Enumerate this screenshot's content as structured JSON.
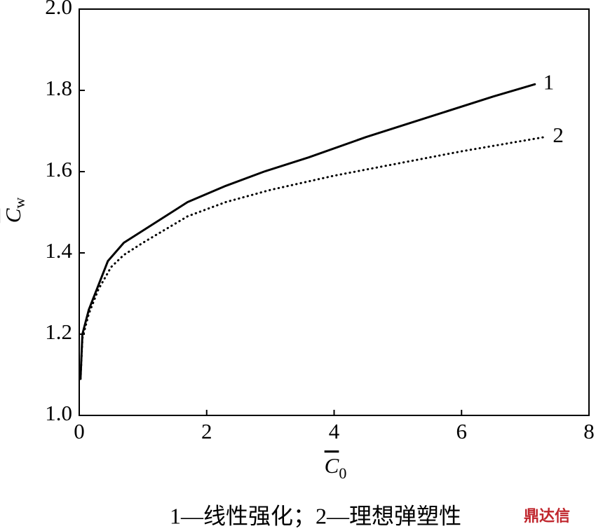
{
  "chart_data": {
    "type": "line",
    "xlabel": {
      "symbol": "C",
      "subscript": "0"
    },
    "ylabel": {
      "symbol": "C",
      "subscript": "w"
    },
    "caption": "1—线性强化；2—理想弹塑性",
    "watermark": "鼎达信",
    "xlim": [
      0,
      8
    ],
    "xticks": [
      0,
      2,
      4,
      6,
      8
    ],
    "ylim": [
      1,
      2
    ],
    "yticks": [
      {
        "value": 1,
        "label": "1.0"
      },
      1.2,
      1.4,
      1.6,
      1.8,
      {
        "value": 2,
        "label": "2.0"
      }
    ],
    "series": [
      {
        "name": "1",
        "color": "#000000",
        "style": "solid",
        "x": [
          0.02,
          0.05,
          0.15,
          0.3,
          0.45,
          0.7,
          1.0,
          1.7,
          2.3,
          2.9,
          3.6,
          4.5,
          5.5,
          6.5,
          7.15
        ],
        "values": [
          1.09,
          1.2,
          1.26,
          1.32,
          1.38,
          1.425,
          1.455,
          1.525,
          1.565,
          1.6,
          1.635,
          1.685,
          1.735,
          1.785,
          1.815
        ]
      },
      {
        "name": "2",
        "color": "#000000",
        "style": "dotted",
        "x": [
          0.02,
          0.05,
          0.15,
          0.3,
          0.5,
          0.7,
          1.0,
          1.7,
          2.3,
          3.0,
          4.0,
          5.0,
          6.0,
          7.3
        ],
        "values": [
          1.09,
          1.19,
          1.25,
          1.31,
          1.365,
          1.395,
          1.425,
          1.49,
          1.525,
          1.555,
          1.59,
          1.62,
          1.65,
          1.685
        ]
      }
    ]
  }
}
